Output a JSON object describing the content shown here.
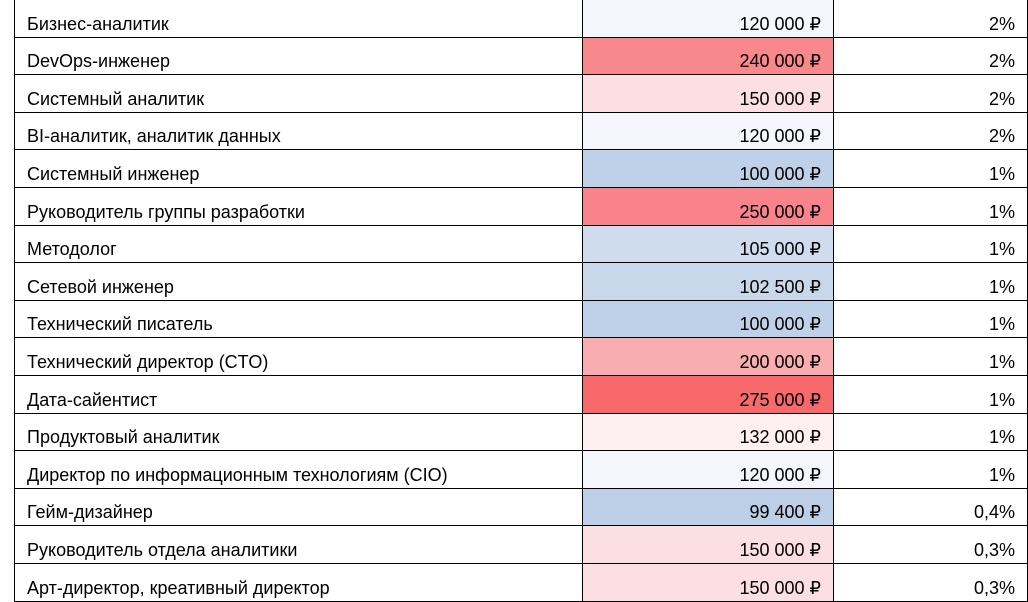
{
  "rows": [
    {
      "role": "Бизнес-аналитик",
      "salary": "120 000 ₽",
      "share": "2%",
      "fill": "#f5f6fb"
    },
    {
      "role": "DevOps-инженер",
      "salary": "240 000 ₽",
      "share": "2%",
      "fill": "#f8888c"
    },
    {
      "role": "Системный аналитик",
      "salary": "150 000 ₽",
      "share": "2%",
      "fill": "#fbdfe2"
    },
    {
      "role": "BI-аналитик, аналитик данных",
      "salary": "120 000 ₽",
      "share": "2%",
      "fill": "#f5f6fb"
    },
    {
      "role": "Системный инженер",
      "salary": "100 000 ₽",
      "share": "1%",
      "fill": "#bfd1e8"
    },
    {
      "role": "Руководитель группы разработки",
      "salary": "250 000 ₽",
      "share": "1%",
      "fill": "#f8838a"
    },
    {
      "role": "Методолог",
      "salary": "105 000 ₽",
      "share": "1%",
      "fill": "#cfdcee"
    },
    {
      "role": "Сетевой инженер",
      "salary": "102 500 ₽",
      "share": "1%",
      "fill": "#c8d7ea"
    },
    {
      "role": "Технический писатель",
      "salary": "100 000 ₽",
      "share": "1%",
      "fill": "#bfd1e8"
    },
    {
      "role": "Технический директор (CTO)",
      "salary": "200 000 ₽",
      "share": "1%",
      "fill": "#f9adb0"
    },
    {
      "role": "Дата-сайентист",
      "salary": "275 000 ₽",
      "share": "1%",
      "fill": "#f8696b"
    },
    {
      "role": "Продуктовый аналитик",
      "salary": "132 000 ₽",
      "share": "1%",
      "fill": "#fdf0f2"
    },
    {
      "role": "Директор по информационным технологиям (CIO)",
      "salary": "120 000 ₽",
      "share": "1%",
      "fill": "#f5f6fb"
    },
    {
      "role": "Гейм-дизайнер",
      "salary": "99 400 ₽",
      "share": "0,4%",
      "fill": "#bccfe7"
    },
    {
      "role": "Руководитель отдела аналитики",
      "salary": "150 000 ₽",
      "share": "0,3%",
      "fill": "#fbdfe2"
    },
    {
      "role": "Арт-директор, креативный директор",
      "salary": "150 000 ₽",
      "share": "0,3%",
      "fill": "#fbdfe2"
    }
  ]
}
